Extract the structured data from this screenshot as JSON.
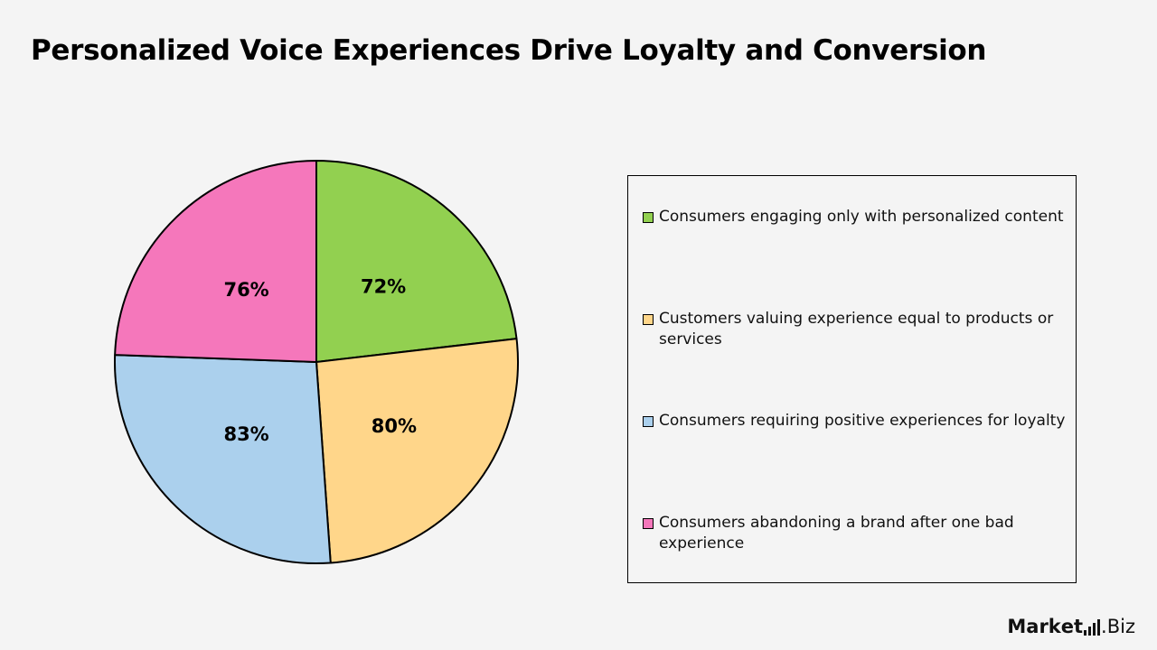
{
  "title": "Personalized Voice Experiences Drive Loyalty and Conversion",
  "chart_data": {
    "type": "pie",
    "categories": [
      "Consumers engaging only with personalized content",
      "Customers valuing experience equal to products or services",
      "Consumers requiring positive experiences for loyalty",
      "Consumers abandoning a brand after one bad experience"
    ],
    "values": [
      72,
      80,
      83,
      76
    ],
    "data_labels": [
      "72%",
      "80%",
      "83%",
      "76%"
    ],
    "colors": [
      "#92d050",
      "#ffd68a",
      "#abd0ed",
      "#f577bb"
    ],
    "legend_placement": "right"
  },
  "logo": {
    "part1": "Mark",
    "part2": "et",
    "part3": ".Biz"
  }
}
